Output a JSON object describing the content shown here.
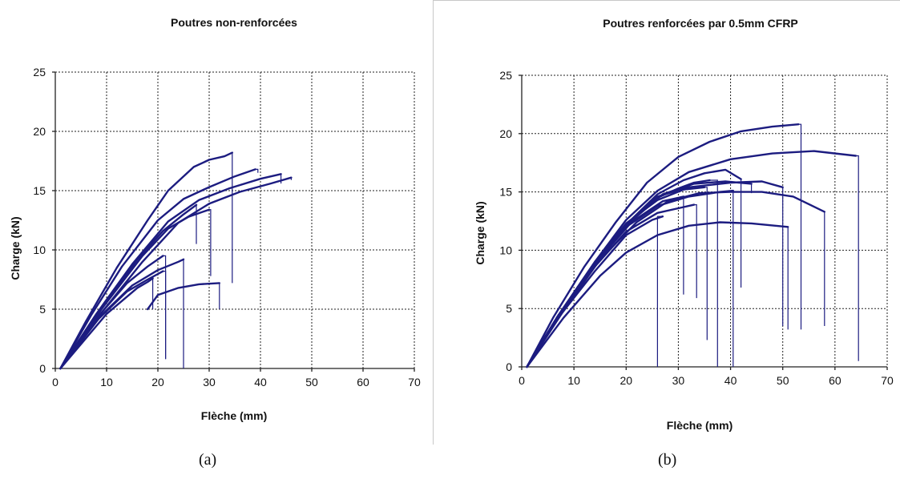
{
  "chart_data": [
    {
      "id": "a",
      "type": "line",
      "title": "Poutres non-renforcées",
      "xlabel": "Flèche (mm)",
      "ylabel": "Charge (kN)",
      "xlim": [
        0,
        70
      ],
      "ylim": [
        0,
        25
      ],
      "xticks": [
        0,
        10,
        20,
        30,
        40,
        50,
        60,
        70
      ],
      "yticks": [
        0,
        5,
        10,
        15,
        20,
        25
      ],
      "grid": true,
      "series": [
        {
          "points": [
            [
              1,
              0
            ],
            [
              6,
              4
            ],
            [
              12,
              8.5
            ],
            [
              18,
              12.5
            ],
            [
              22,
              15
            ],
            [
              27,
              17
            ],
            [
              30,
              17.6
            ],
            [
              33,
              17.9
            ],
            [
              34.5,
              18.2
            ]
          ],
          "drop": [
            34.5,
            7.2
          ]
        },
        {
          "points": [
            [
              1,
              0
            ],
            [
              7,
              4.5
            ],
            [
              13,
              8.6
            ],
            [
              20,
              12.5
            ],
            [
              25,
              14.3
            ],
            [
              30,
              15.3
            ],
            [
              35,
              16.2
            ],
            [
              39,
              16.8
            ]
          ],
          "drop": [
            39.5,
            16.5
          ]
        },
        {
          "points": [
            [
              1,
              0
            ],
            [
              8,
              4.6
            ],
            [
              15,
              8.8
            ],
            [
              22,
              12.4
            ],
            [
              28,
              14.2
            ],
            [
              34,
              15.2
            ],
            [
              40,
              16.0
            ],
            [
              44,
              16.4
            ]
          ],
          "drop": [
            44,
            15.6
          ]
        },
        {
          "points": [
            [
              1,
              0
            ],
            [
              9,
              4.7
            ],
            [
              17,
              9.0
            ],
            [
              24,
              12.3
            ],
            [
              30,
              13.9
            ],
            [
              36,
              14.9
            ],
            [
              42,
              15.6
            ],
            [
              46,
              16.1
            ]
          ],
          "drop": [
            46,
            15.9
          ]
        },
        {
          "points": [
            [
              1,
              0
            ],
            [
              9,
              5
            ],
            [
              16,
              9.2
            ],
            [
              21,
              11.6
            ],
            [
              25,
              13.0
            ],
            [
              27.5,
              13.8
            ]
          ],
          "drop": [
            27.5,
            10.5
          ]
        },
        {
          "points": [
            [
              1,
              0
            ],
            [
              9,
              5
            ],
            [
              17,
              9.5
            ],
            [
              22,
              11.8
            ],
            [
              26,
              12.8
            ],
            [
              30,
              13.4
            ]
          ],
          "drop": [
            30.3,
            7.8
          ]
        },
        {
          "points": [
            [
              1,
              0
            ],
            [
              8,
              4.2
            ],
            [
              14,
              7.2
            ],
            [
              18,
              8.6
            ],
            [
              21,
              9.5
            ]
          ],
          "drop": [
            21.5,
            0.8
          ]
        },
        {
          "points": [
            [
              1,
              0
            ],
            [
              8,
              4.0
            ],
            [
              14,
              6.5
            ],
            [
              18,
              7.5
            ],
            [
              21,
              8.2
            ]
          ],
          "drop": [
            21.5,
            0.8
          ]
        },
        {
          "points": [
            [
              1,
              0
            ],
            [
              10,
              4.6
            ],
            [
              16,
              6.8
            ],
            [
              18,
              7.3
            ],
            [
              19,
              7.6
            ]
          ],
          "drop": [
            19,
            5.0
          ]
        },
        {
          "points": [
            [
              18,
              5.0
            ],
            [
              20,
              6.2
            ],
            [
              24,
              6.8
            ],
            [
              28,
              7.1
            ],
            [
              32,
              7.2
            ]
          ],
          "drop": [
            32,
            5.0
          ]
        },
        {
          "points": [
            [
              1,
              0
            ],
            [
              9,
              4.5
            ],
            [
              15,
              7.0
            ],
            [
              20,
              8.3
            ],
            [
              24,
              9.0
            ],
            [
              25,
              9.2
            ]
          ],
          "drop": [
            25,
            0
          ]
        }
      ]
    },
    {
      "id": "b",
      "type": "line",
      "title": "Poutres renforcées par 0.5mm CFRP",
      "xlabel": "Flèche (mm)",
      "ylabel": "Charge (kN)",
      "xlim": [
        0,
        70
      ],
      "ylim": [
        0,
        25
      ],
      "xticks": [
        0,
        10,
        20,
        30,
        40,
        50,
        60,
        70
      ],
      "yticks": [
        0,
        5,
        10,
        15,
        20,
        25
      ],
      "grid": true,
      "series": [
        {
          "points": [
            [
              1,
              0
            ],
            [
              6,
              4.2
            ],
            [
              12,
              8.6
            ],
            [
              18,
              12.4
            ],
            [
              24,
              15.8
            ],
            [
              30,
              18.0
            ],
            [
              36,
              19.3
            ],
            [
              42,
              20.2
            ],
            [
              48,
              20.6
            ],
            [
              53,
              20.8
            ]
          ],
          "drop": [
            53.5,
            3.2
          ]
        },
        {
          "points": [
            [
              1,
              0
            ],
            [
              7,
              4.4
            ],
            [
              14,
              9.0
            ],
            [
              20,
              12.6
            ],
            [
              26,
              15.1
            ],
            [
              32,
              16.7
            ],
            [
              40,
              17.8
            ],
            [
              48,
              18.3
            ],
            [
              56,
              18.5
            ],
            [
              64,
              18.1
            ]
          ],
          "drop": [
            64.5,
            0.5
          ]
        },
        {
          "points": [
            [
              1,
              0
            ],
            [
              7,
              4.4
            ],
            [
              14,
              9.0
            ],
            [
              20,
              12.3
            ],
            [
              26,
              14.3
            ],
            [
              31,
              15.2
            ],
            [
              35,
              15.4
            ]
          ],
          "drop": [
            35.5,
            2.3
          ]
        },
        {
          "points": [
            [
              1,
              0
            ],
            [
              7,
              4.4
            ],
            [
              14,
              8.8
            ],
            [
              20,
              12.2
            ],
            [
              26,
              14.5
            ],
            [
              30,
              15.3
            ],
            [
              33,
              15.8
            ],
            [
              36,
              16.0
            ]
          ],
          "drop": [
            37.5,
            0
          ]
        },
        {
          "points": [
            [
              1,
              0
            ],
            [
              7,
              4.4
            ],
            [
              14,
              8.8
            ],
            [
              20,
              12.2
            ],
            [
              26,
              14.8
            ],
            [
              31,
              16.0
            ],
            [
              35,
              16.6
            ],
            [
              39,
              16.9
            ],
            [
              42,
              16.1
            ]
          ],
          "drop": [
            42,
            6.8
          ]
        },
        {
          "points": [
            [
              1,
              0
            ],
            [
              7,
              4.4
            ],
            [
              14,
              8.8
            ],
            [
              20,
              12.2
            ],
            [
              26,
              14.6
            ],
            [
              32,
              15.4
            ],
            [
              40,
              15.8
            ],
            [
              46,
              15.9
            ],
            [
              50,
              15.4
            ]
          ],
          "drop": [
            50,
            3.5
          ]
        },
        {
          "points": [
            [
              1,
              0
            ],
            [
              8,
              4.8
            ],
            [
              15,
              9.2
            ],
            [
              22,
              12.4
            ],
            [
              28,
              14.2
            ],
            [
              34,
              14.9
            ],
            [
              40,
              15.0
            ],
            [
              46,
              15.0
            ],
            [
              52,
              14.6
            ],
            [
              58,
              13.3
            ]
          ],
          "drop": [
            58,
            3.5
          ]
        },
        {
          "points": [
            [
              1,
              0
            ],
            [
              7,
              4.4
            ],
            [
              14,
              8.6
            ],
            [
              20,
              11.6
            ],
            [
              26,
              13.2
            ],
            [
              30,
              13.6
            ],
            [
              33,
              13.9
            ]
          ],
          "drop": [
            33.5,
            5.9
          ]
        },
        {
          "points": [
            [
              1,
              0
            ],
            [
              7,
              4.2
            ],
            [
              14,
              8.2
            ],
            [
              20,
              11.3
            ],
            [
              25,
              12.6
            ],
            [
              27,
              12.9
            ]
          ],
          "drop": [
            26,
            0
          ]
        },
        {
          "points": [
            [
              1,
              0
            ],
            [
              8,
              4.2
            ],
            [
              15,
              7.8
            ],
            [
              20,
              9.8
            ],
            [
              26,
              11.3
            ],
            [
              32,
              12.1
            ],
            [
              38,
              12.4
            ],
            [
              44,
              12.3
            ],
            [
              51,
              12.0
            ]
          ],
          "drop": [
            51,
            3.2
          ]
        },
        {
          "points": [
            [
              1,
              0
            ],
            [
              7,
              4.4
            ],
            [
              14,
              8.8
            ],
            [
              20,
              12.0
            ],
            [
              26,
              13.8
            ],
            [
              32,
              14.6
            ],
            [
              38,
              15.0
            ],
            [
              40.5,
              15.1
            ]
          ],
          "drop": [
            40.5,
            0
          ]
        },
        {
          "points": [
            [
              1,
              0
            ],
            [
              7,
              4.4
            ],
            [
              14,
              8.8
            ],
            [
              21,
              12.5
            ],
            [
              27,
              14.8
            ],
            [
              33,
              15.7
            ],
            [
              39,
              15.9
            ],
            [
              44,
              15.7
            ]
          ],
          "drop": [
            44,
            14.9
          ]
        },
        {
          "points": [
            [
              1,
              0
            ],
            [
              7,
              4.4
            ],
            [
              14,
              8.8
            ],
            [
              21,
              12.4
            ],
            [
              27,
              14.2
            ],
            [
              30,
              14.5
            ],
            [
              31,
              14.6
            ]
          ],
          "drop": [
            31,
            6.2
          ]
        }
      ]
    }
  ],
  "captions": [
    "(a)",
    "(b)"
  ],
  "colors": {
    "curve": "#1c1c80",
    "grid": "#222222"
  }
}
